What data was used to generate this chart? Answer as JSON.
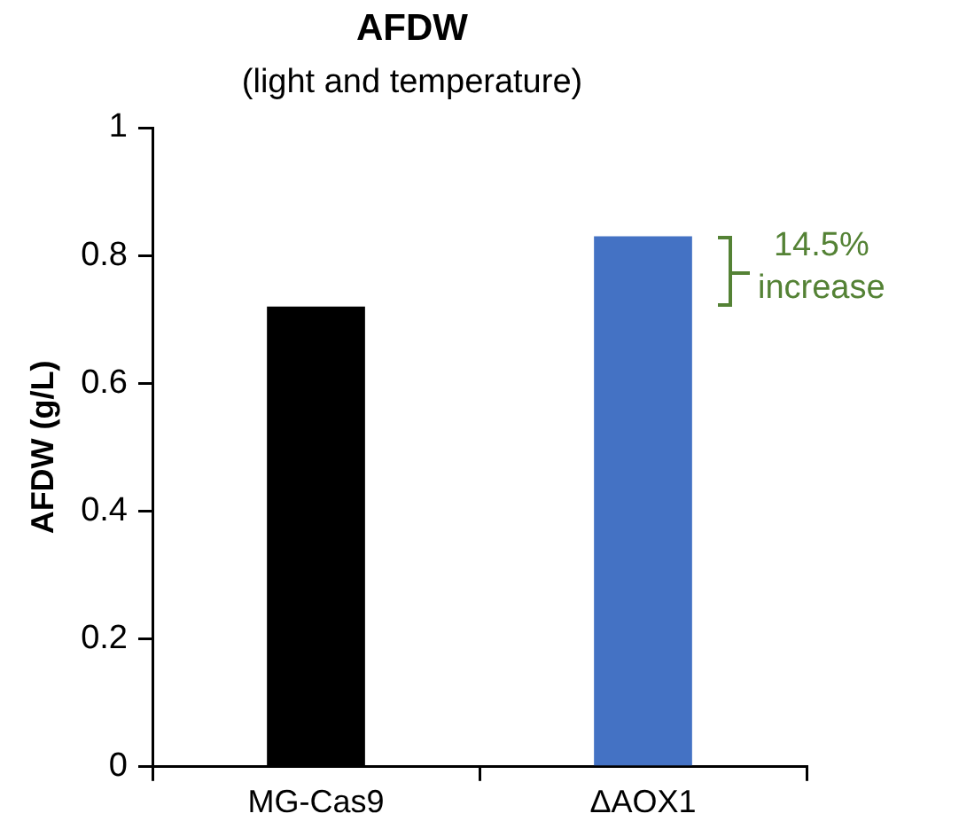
{
  "chart_data": {
    "type": "bar",
    "title": "AFDW",
    "subtitle": "(light and temperature)",
    "ylabel": "AFDW (g/L)",
    "categories": [
      "MG-Cas9",
      "ΔAOX1"
    ],
    "values": [
      0.72,
      0.83
    ],
    "colors": [
      "#000000",
      "#4472c4"
    ],
    "ylim": [
      0,
      1
    ],
    "yticks": [
      0,
      0.2,
      0.4,
      0.6,
      0.8,
      1
    ],
    "grid": false,
    "legend": false,
    "annotations": [
      "14.5% increase"
    ]
  }
}
